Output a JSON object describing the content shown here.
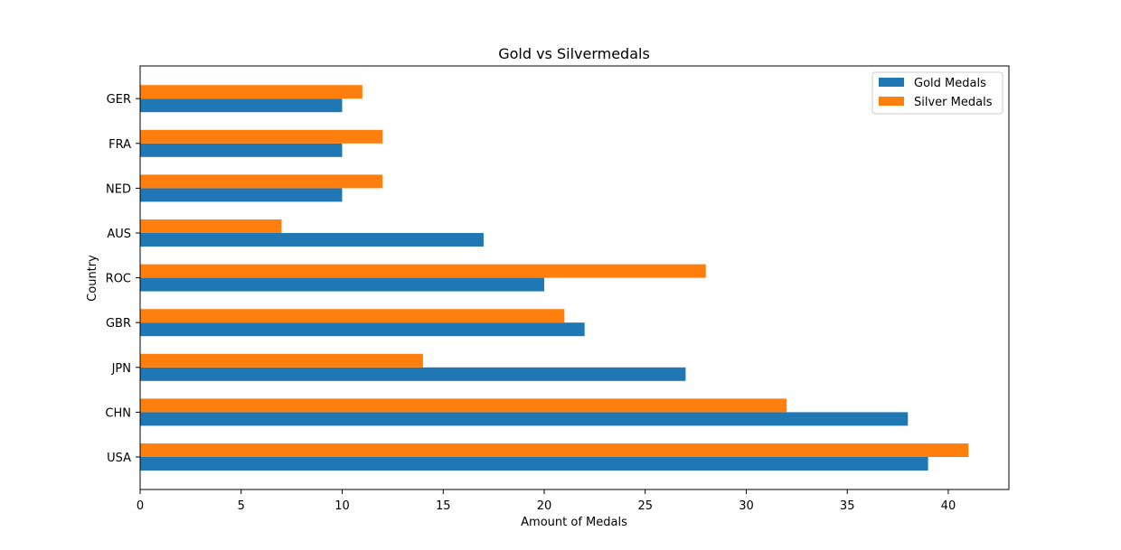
{
  "chart_data": {
    "type": "bar",
    "orientation": "horizontal",
    "title": "Gold vs Silvermedals",
    "xlabel": "Amount of Medals",
    "ylabel": "Country",
    "categories": [
      "USA",
      "CHN",
      "JPN",
      "GBR",
      "ROC",
      "AUS",
      "NED",
      "FRA",
      "GER"
    ],
    "series": [
      {
        "name": "Gold Medals",
        "color": "#1f77b4",
        "values": [
          39,
          38,
          27,
          22,
          20,
          17,
          10,
          10,
          10
        ]
      },
      {
        "name": "Silver Medals",
        "color": "#ff7f0e",
        "values": [
          41,
          32,
          14,
          21,
          28,
          7,
          12,
          12,
          11
        ]
      }
    ],
    "xlim": [
      0,
      43
    ],
    "xticks": [
      0,
      5,
      10,
      15,
      20,
      25,
      30,
      35,
      40
    ],
    "grid": false,
    "legend_position": "top-right"
  }
}
